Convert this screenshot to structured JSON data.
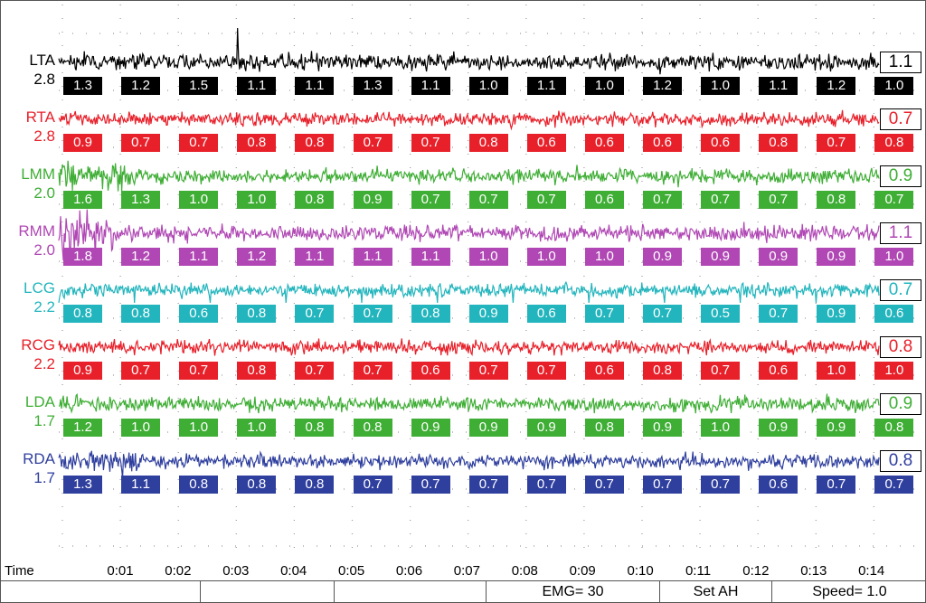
{
  "time_label": "Time",
  "time_ticks": [
    "0:01",
    "0:02",
    "0:03",
    "0:04",
    "0:05",
    "0:06",
    "0:07",
    "0:08",
    "0:09",
    "0:10",
    "0:11",
    "0:12",
    "0:13",
    "0:14"
  ],
  "channels": [
    {
      "name": "LTA",
      "gain": "2.8",
      "color": "#000000",
      "current": "1.1",
      "values": [
        "1.3",
        "1.2",
        "1.5",
        "1.1",
        "1.1",
        "1.3",
        "1.1",
        "1.0",
        "1.1",
        "1.0",
        "1.2",
        "1.0",
        "1.1",
        "1.2",
        "1.0"
      ]
    },
    {
      "name": "RTA",
      "gain": "2.8",
      "color": "#e8202a",
      "current": "0.7",
      "values": [
        "0.9",
        "0.7",
        "0.7",
        "0.8",
        "0.8",
        "0.7",
        "0.7",
        "0.8",
        "0.6",
        "0.6",
        "0.6",
        "0.6",
        "0.8",
        "0.7",
        "0.8"
      ]
    },
    {
      "name": "LMM",
      "gain": "2.0",
      "color": "#3fae35",
      "current": "0.9",
      "values": [
        "1.6",
        "1.3",
        "1.0",
        "1.0",
        "0.8",
        "0.9",
        "0.7",
        "0.7",
        "0.7",
        "0.6",
        "0.7",
        "0.7",
        "0.7",
        "0.8",
        "0.7"
      ]
    },
    {
      "name": "RMM",
      "gain": "2.0",
      "color": "#b047b4",
      "current": "1.1",
      "values": [
        "1.8",
        "1.2",
        "1.1",
        "1.2",
        "1.1",
        "1.1",
        "1.1",
        "1.0",
        "1.0",
        "1.0",
        "0.9",
        "0.9",
        "0.9",
        "0.9",
        "1.0"
      ]
    },
    {
      "name": "LCG",
      "gain": "2.2",
      "color": "#22b5bd",
      "current": "0.7",
      "values": [
        "0.8",
        "0.8",
        "0.6",
        "0.8",
        "0.7",
        "0.7",
        "0.8",
        "0.9",
        "0.6",
        "0.7",
        "0.7",
        "0.5",
        "0.7",
        "0.9",
        "0.6"
      ]
    },
    {
      "name": "RCG",
      "gain": "2.2",
      "color": "#e8202a",
      "current": "0.8",
      "values": [
        "0.9",
        "0.7",
        "0.7",
        "0.8",
        "0.7",
        "0.7",
        "0.6",
        "0.7",
        "0.7",
        "0.6",
        "0.8",
        "0.7",
        "0.6",
        "1.0",
        "1.0"
      ]
    },
    {
      "name": "LDA",
      "gain": "1.7",
      "color": "#3fae35",
      "current": "0.9",
      "values": [
        "1.2",
        "1.0",
        "1.0",
        "1.0",
        "0.8",
        "0.8",
        "0.9",
        "0.9",
        "0.9",
        "0.8",
        "0.9",
        "1.0",
        "0.9",
        "0.9",
        "0.8"
      ]
    },
    {
      "name": "RDA",
      "gain": "1.7",
      "color": "#2f3f9e",
      "current": "0.8",
      "values": [
        "1.3",
        "1.1",
        "0.8",
        "0.8",
        "0.8",
        "0.7",
        "0.7",
        "0.7",
        "0.7",
        "0.7",
        "0.7",
        "0.7",
        "0.6",
        "0.7",
        "0.7"
      ]
    }
  ],
  "status_bar": {
    "emg": "EMG= 30",
    "set": "Set AH",
    "speed": "Speed= 1.0"
  }
}
